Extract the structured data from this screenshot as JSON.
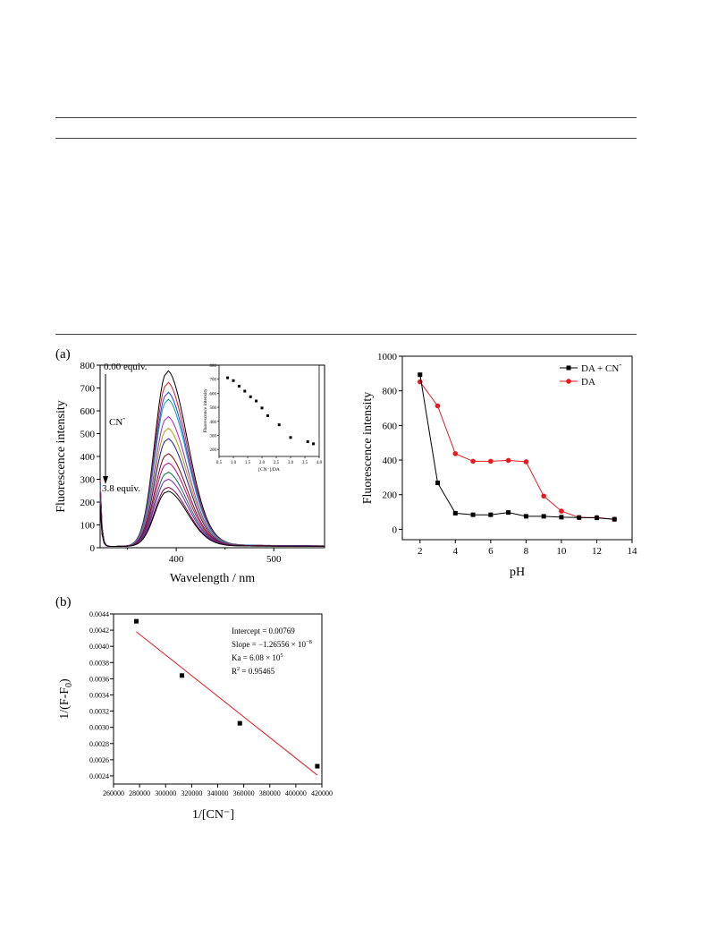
{
  "rules": [
    "table-top-rule",
    "table-header-rule",
    "table-bottom-rule"
  ],
  "panel_a_label": "(a)",
  "panel_b_label": "(b)",
  "colors": {
    "black": "#000000",
    "red": "#e8191e",
    "spectra": [
      "#000000",
      "#e8171e",
      "#1e41ff",
      "#00a8a8",
      "#b026c5",
      "#a6a300",
      "#1a1aa8",
      "#8b0000",
      "#cc007a",
      "#00704a",
      "#7a1fd0",
      "#800040"
    ]
  },
  "chart_data": [
    {
      "id": "spectra",
      "type": "line",
      "xlabel": "Wavelength / nm",
      "ylabel": "Fluorescence intensity",
      "xlim": [
        322,
        552
      ],
      "ylim": [
        0,
        800
      ],
      "xticks": [
        400,
        500
      ],
      "yticks": [
        0,
        100,
        200,
        300,
        400,
        500,
        600,
        700,
        800
      ],
      "annotations": {
        "start": "0.00 equiv.",
        "reagent": "CN",
        "reagent_sup": "-",
        "end": "3.8 equiv."
      },
      "peak_wavelength": 390,
      "series_peaks": [
        758,
        708,
        665,
        635,
        560,
        510,
        465,
        400,
        360,
        320,
        290,
        255,
        238
      ]
    },
    {
      "id": "inset",
      "type": "scatter",
      "xlabel": "[CN⁻]/DA",
      "ylabel": "Fluorescence intensity",
      "xlim": [
        0.5,
        4.0
      ],
      "ylim": [
        150,
        800
      ],
      "xticks": [
        "0.5",
        "1.0",
        "1.5",
        "2.0",
        "2.5",
        "3.0",
        "3.5",
        "4.0"
      ],
      "yticks": [
        "200",
        "300",
        "400",
        "500",
        "600",
        "700",
        "800"
      ],
      "x": [
        0.8,
        1.0,
        1.2,
        1.4,
        1.6,
        1.8,
        2.0,
        2.2,
        2.6,
        3.0,
        3.6,
        3.8
      ],
      "y": [
        710,
        690,
        650,
        615,
        575,
        545,
        495,
        440,
        375,
        285,
        255,
        240
      ]
    },
    {
      "id": "ph",
      "type": "line",
      "xlabel": "pH",
      "ylabel": "Fluorescence intensity",
      "xlim": [
        1,
        14
      ],
      "ylim": [
        -60,
        1000
      ],
      "xticks": [
        2,
        4,
        6,
        8,
        10,
        12,
        14
      ],
      "yticks": [
        0,
        200,
        400,
        600,
        800,
        1000
      ],
      "legend": "top-right",
      "series": [
        {
          "name": "DA + CN",
          "name_sup": "-",
          "marker": "square",
          "color": "#000000",
          "x": [
            2,
            3,
            4,
            5,
            6,
            7,
            8,
            9,
            10,
            11,
            12,
            13
          ],
          "y": [
            893,
            268,
            93,
            84,
            84,
            97,
            75,
            75,
            70,
            68,
            66,
            58
          ]
        },
        {
          "name": "DA",
          "marker": "circle",
          "color": "#e8191e",
          "x": [
            2,
            3,
            4,
            5,
            6,
            7,
            8,
            9,
            10,
            11,
            12,
            13
          ],
          "y": [
            852,
            713,
            437,
            393,
            393,
            398,
            390,
            192,
            105,
            68,
            68,
            58
          ]
        }
      ]
    },
    {
      "id": "benesi",
      "type": "scatter",
      "xlabel": "1/[CN⁻]",
      "ylabel": "1/(F-F",
      "ylabel_sub": "0",
      "ylabel_tail": ")",
      "xlim": [
        260000,
        420000
      ],
      "ylim": [
        0.0023,
        0.0044
      ],
      "xticks": [
        "260000",
        "280000",
        "300000",
        "320000",
        "340000",
        "360000",
        "380000",
        "400000",
        "420000"
      ],
      "yticks": [
        "0.0024",
        "0.0026",
        "0.0028",
        "0.0030",
        "0.0032",
        "0.0034",
        "0.0036",
        "0.0038",
        "0.0040",
        "0.0042",
        "0.0044"
      ],
      "x": [
        277500,
        312500,
        357000,
        416500
      ],
      "y": [
        0.00431,
        0.00364,
        0.00305,
        0.00252
      ],
      "fit": {
        "x": [
          277500,
          416500
        ],
        "y": [
          0.00418,
          0.00241
        ]
      },
      "annotations": {
        "intercept": "Intercept = 0.00769",
        "slope": "Slope = −1.26556 × 10",
        "slope_exp": "−8",
        "ka": "Ka = 6.08 × 10",
        "ka_exp": "5",
        "r2_pre": "R",
        "r2_exp": "2",
        "r2_post": " = 0.95465"
      }
    }
  ]
}
